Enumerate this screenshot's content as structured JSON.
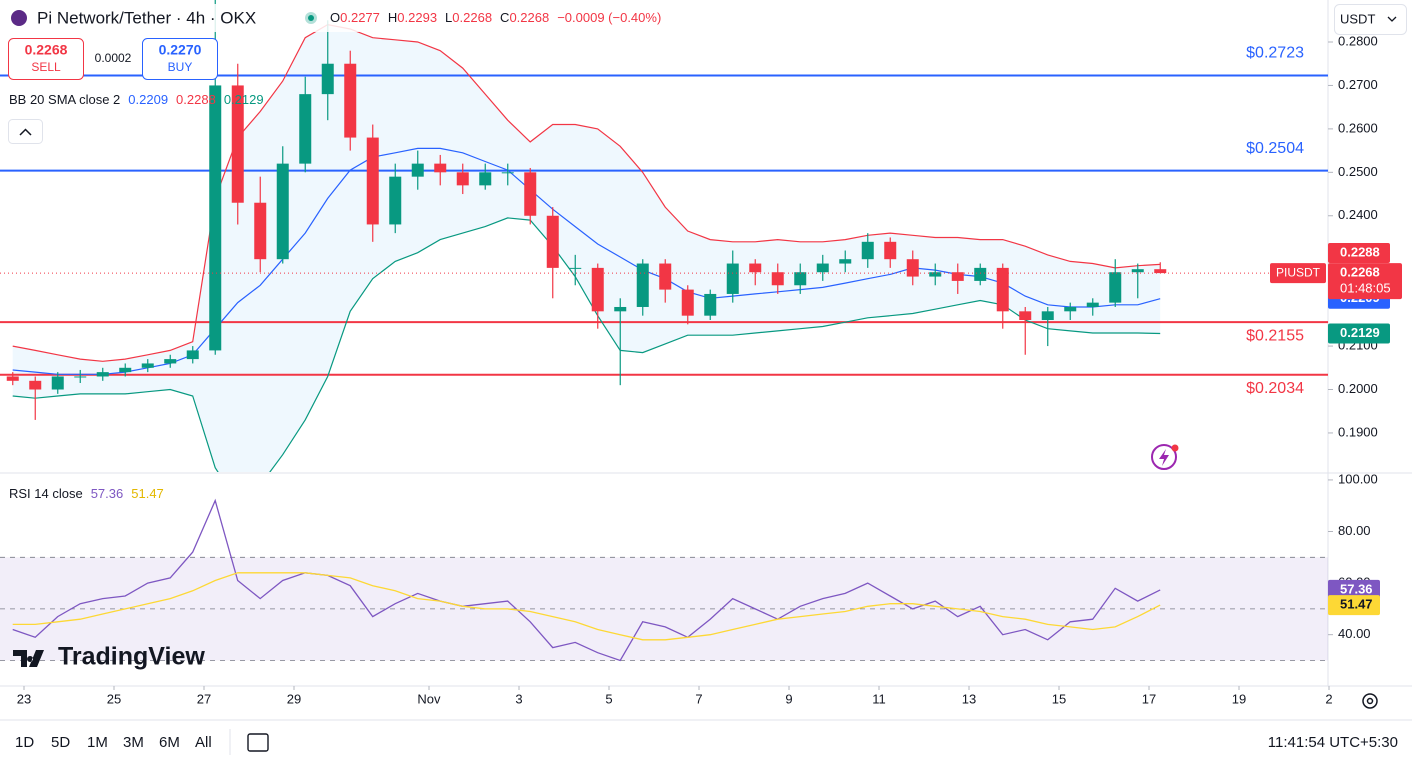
{
  "header": {
    "symbol": "Pi Network/Tether · 4h · OKX",
    "ohlc": [
      [
        "O",
        "0.2277"
      ],
      [
        "H",
        "0.2293"
      ],
      [
        "L",
        "0.2268"
      ],
      [
        "C",
        "0.2268"
      ]
    ],
    "change": "−0.0009 (−0.40%)"
  },
  "trade": {
    "sell_price": "0.2268",
    "sell": "SELL",
    "spread": "0.0002",
    "buy_price": "0.2270",
    "buy": "BUY"
  },
  "currency": "USDT",
  "watermark": "TradingView",
  "toolbar": {
    "ranges": [
      "1D",
      "5D",
      "1M",
      "3M",
      "6M",
      "All"
    ],
    "clock": "11:41:54 UTC+5:30"
  },
  "chart_data": [
    {
      "type": "candlestick",
      "up_color": "#089981",
      "down_color": "#f23645",
      "xlim": [
        -0.5333,
        28.9778
      ],
      "ylim": [
        0.18101,
        0.28967
      ],
      "yticks": [
        {
          "value": 0.28,
          "label": "0.2800"
        },
        {
          "value": 0.27,
          "label": "0.2700"
        },
        {
          "value": 0.26,
          "label": "0.2600"
        },
        {
          "value": 0.25,
          "label": "0.2500"
        },
        {
          "value": 0.24,
          "label": "0.2400"
        },
        {
          "value": 0.23,
          "label": "0.2300"
        },
        {
          "value": 0.22,
          "label": "0.2200"
        },
        {
          "value": 0.21,
          "label": "0.2100"
        },
        {
          "value": 0.2,
          "label": "0.2000"
        },
        {
          "value": 0.19,
          "label": "0.1900"
        }
      ],
      "grid": false,
      "x": [
        -0.25,
        0.25,
        0.75,
        1.25,
        1.75,
        2.25,
        2.75,
        3.25,
        3.75,
        4.25,
        4.75,
        5.25,
        5.75,
        6.25,
        6.75,
        7.25,
        7.75,
        8.25,
        8.75,
        9.25,
        9.75,
        10.25,
        10.75,
        11.25,
        11.75,
        12.25,
        12.75,
        13.25,
        13.75,
        14.25,
        14.75,
        15.25,
        15.75,
        16.25,
        16.75,
        17.25,
        17.75,
        18.25,
        18.75,
        19.25,
        19.75,
        20.25,
        20.75,
        21.25,
        21.75,
        22.25,
        22.75,
        23.25,
        23.75,
        24.25,
        24.75,
        25.25
      ],
      "open": [
        0.203,
        0.202,
        0.2,
        0.203,
        0.203,
        0.204,
        0.205,
        0.206,
        0.207,
        0.209,
        0.27,
        0.243,
        0.23,
        0.252,
        0.268,
        0.275,
        0.258,
        0.238,
        0.249,
        0.252,
        0.25,
        0.247,
        0.25,
        0.25,
        0.24,
        0.228,
        0.228,
        0.218,
        0.219,
        0.229,
        0.223,
        0.217,
        0.222,
        0.229,
        0.227,
        0.224,
        0.227,
        0.229,
        0.23,
        0.234,
        0.23,
        0.226,
        0.227,
        0.225,
        0.228,
        0.218,
        0.216,
        0.218,
        0.219,
        0.22,
        0.227,
        0.2277
      ],
      "high": [
        0.204,
        0.203,
        0.204,
        0.2045,
        0.205,
        0.206,
        0.207,
        0.208,
        0.21,
        0.2897,
        0.275,
        0.249,
        0.256,
        0.272,
        0.285,
        0.278,
        0.261,
        0.252,
        0.255,
        0.254,
        0.252,
        0.252,
        0.252,
        0.251,
        0.242,
        0.231,
        0.229,
        0.221,
        0.23,
        0.23,
        0.224,
        0.223,
        0.232,
        0.23,
        0.229,
        0.229,
        0.231,
        0.232,
        0.236,
        0.235,
        0.232,
        0.229,
        0.229,
        0.229,
        0.229,
        0.219,
        0.219,
        0.22,
        0.221,
        0.23,
        0.229,
        0.2293
      ],
      "low": [
        0.201,
        0.193,
        0.199,
        0.2015,
        0.202,
        0.203,
        0.204,
        0.205,
        0.206,
        0.208,
        0.238,
        0.227,
        0.229,
        0.25,
        0.262,
        0.255,
        0.234,
        0.236,
        0.246,
        0.247,
        0.245,
        0.246,
        0.247,
        0.238,
        0.221,
        0.224,
        0.214,
        0.201,
        0.217,
        0.22,
        0.215,
        0.216,
        0.22,
        0.224,
        0.222,
        0.222,
        0.225,
        0.227,
        0.228,
        0.228,
        0.224,
        0.224,
        0.222,
        0.224,
        0.214,
        0.208,
        0.21,
        0.216,
        0.217,
        0.219,
        0.221,
        0.2268
      ],
      "close": [
        0.202,
        0.2,
        0.203,
        0.203,
        0.204,
        0.205,
        0.206,
        0.207,
        0.209,
        0.27,
        0.243,
        0.23,
        0.252,
        0.268,
        0.275,
        0.258,
        0.238,
        0.249,
        0.252,
        0.25,
        0.247,
        0.25,
        0.25,
        0.24,
        0.228,
        0.228,
        0.218,
        0.219,
        0.229,
        0.223,
        0.217,
        0.222,
        0.229,
        0.227,
        0.224,
        0.227,
        0.229,
        0.23,
        0.234,
        0.23,
        0.226,
        0.227,
        0.225,
        0.228,
        0.218,
        0.216,
        0.218,
        0.219,
        0.22,
        0.227,
        0.2277,
        0.2268
      ],
      "overlay": {
        "title": "BB 20 SMA close 2",
        "fill": "rgba(33,150,243,0.07)",
        "lines": [
          {
            "color": "#2962ff",
            "last_label": "0.2209",
            "values": [
              0.2045,
              0.204,
              0.2035,
              0.2035,
              0.2035,
              0.204,
              0.205,
              0.206,
              0.208,
              0.214,
              0.22,
              0.224,
              0.23,
              0.236,
              0.244,
              0.2505,
              0.2535,
              0.2545,
              0.2555,
              0.2555,
              0.2545,
              0.2525,
              0.2505,
              0.246,
              0.2415,
              0.2375,
              0.2335,
              0.2305,
              0.2275,
              0.2255,
              0.2225,
              0.221,
              0.2215,
              0.222,
              0.2225,
              0.223,
              0.2235,
              0.2245,
              0.2255,
              0.2265,
              0.228,
              0.2275,
              0.2265,
              0.226,
              0.2245,
              0.2215,
              0.2195,
              0.219,
              0.219,
              0.2195,
              0.2195,
              0.2209
            ]
          },
          {
            "color": "#f23645",
            "last_label": "0.2288",
            "values": [
              0.21,
              0.209,
              0.208,
              0.207,
              0.2065,
              0.207,
              0.208,
              0.209,
              0.211,
              0.244,
              0.258,
              0.264,
              0.271,
              0.281,
              0.284,
              0.283,
              0.281,
              0.2805,
              0.28,
              0.278,
              0.274,
              0.268,
              0.262,
              0.257,
              0.261,
              0.261,
              0.26,
              0.256,
              0.25,
              0.242,
              0.2365,
              0.2345,
              0.234,
              0.234,
              0.2345,
              0.234,
              0.234,
              0.2345,
              0.2355,
              0.236,
              0.2355,
              0.235,
              0.235,
              0.2345,
              0.2345,
              0.233,
              0.231,
              0.2295,
              0.229,
              0.228,
              0.2285,
              0.2288
            ]
          },
          {
            "color": "#089981",
            "last_label": "0.2129",
            "values": [
              0.1985,
              0.198,
              0.1985,
              0.199,
              0.199,
              0.199,
              0.1995,
              0.2,
              0.1985,
              0.182,
              0.174,
              0.178,
              0.185,
              0.193,
              0.203,
              0.218,
              0.2255,
              0.2295,
              0.2315,
              0.2345,
              0.236,
              0.2375,
              0.2395,
              0.239,
              0.233,
              0.226,
              0.217,
              0.209,
              0.2085,
              0.2105,
              0.2125,
              0.2125,
              0.2125,
              0.213,
              0.2135,
              0.214,
              0.2145,
              0.2155,
              0.2165,
              0.217,
              0.2175,
              0.2185,
              0.2195,
              0.2205,
              0.2195,
              0.216,
              0.214,
              0.2135,
              0.213,
              0.213,
              0.213,
              0.2129
            ]
          }
        ]
      },
      "levels": [
        {
          "value": 0.2723,
          "label": "$0.2723",
          "color": "#2962ff"
        },
        {
          "value": 0.2504,
          "label": "$0.2504",
          "color": "#2962ff"
        },
        {
          "value": 0.2155,
          "label": "$0.2155",
          "color": "#f23645"
        },
        {
          "value": 0.2034,
          "label": "$0.2034",
          "color": "#f23645"
        }
      ],
      "price_line": {
        "value": 0.2268,
        "label": "0.2268",
        "symbol": "PIUSDT",
        "countdown": "01:48:05",
        "color": "#f23645"
      }
    },
    {
      "type": "line",
      "title": "RSI 14 close",
      "xlim": [
        -0.5333,
        28.9778
      ],
      "ylim": [
        20.1,
        102.3
      ],
      "yticks": [
        {
          "value": 100,
          "label": "100.00"
        },
        {
          "value": 80,
          "label": "80.00"
        },
        {
          "value": 60,
          "label": "60.00"
        },
        {
          "value": 40,
          "label": "40.00"
        }
      ],
      "xticks": [
        {
          "value": 0,
          "label": "23"
        },
        {
          "value": 2,
          "label": "25"
        },
        {
          "value": 4,
          "label": "27"
        },
        {
          "value": 6,
          "label": "29"
        },
        {
          "value": 9,
          "label": "Nov"
        },
        {
          "value": 11,
          "label": "3"
        },
        {
          "value": 13,
          "label": "5"
        },
        {
          "value": 15,
          "label": "7"
        },
        {
          "value": 17,
          "label": "9"
        },
        {
          "value": 19,
          "label": "11"
        },
        {
          "value": 21,
          "label": "13"
        },
        {
          "value": 23,
          "label": "15"
        },
        {
          "value": 25,
          "label": "17"
        },
        {
          "value": 27,
          "label": "19"
        },
        {
          "value": 29,
          "label": "2"
        }
      ],
      "band": [
        30,
        70
      ],
      "midline": 50,
      "band_color": "rgba(126,87,194,0.1)",
      "x": [
        -0.25,
        0.25,
        0.75,
        1.25,
        1.75,
        2.25,
        2.75,
        3.25,
        3.75,
        4.25,
        4.75,
        5.25,
        5.75,
        6.25,
        6.75,
        7.25,
        7.75,
        8.25,
        8.75,
        9.25,
        9.75,
        10.25,
        10.75,
        11.25,
        11.75,
        12.25,
        12.75,
        13.25,
        13.75,
        14.25,
        14.75,
        15.25,
        15.75,
        16.25,
        16.75,
        17.25,
        17.75,
        18.25,
        18.75,
        19.25,
        19.75,
        20.25,
        20.75,
        21.25,
        21.75,
        22.25,
        22.75,
        23.25,
        23.75,
        24.25,
        24.75,
        25.25
      ],
      "series": [
        {
          "color": "#7e57c2",
          "last_label": "57.36",
          "values": [
            42,
            39,
            47,
            52,
            54,
            55,
            60,
            62,
            72,
            92,
            61,
            54,
            61,
            64,
            63,
            59,
            47,
            52,
            56,
            53,
            51,
            52,
            53,
            45,
            35,
            37,
            33,
            30,
            45,
            43,
            39,
            46,
            54,
            50,
            46,
            51,
            54,
            56,
            60,
            55,
            50,
            53,
            47,
            51,
            40,
            42,
            38,
            45,
            46,
            58,
            53,
            57.36
          ]
        },
        {
          "color": "#fdd835",
          "last_label": "51.47",
          "values": [
            44,
            44,
            45,
            46,
            48,
            50,
            52,
            54,
            57,
            61,
            64,
            64,
            64,
            64,
            63,
            62,
            59,
            57,
            54,
            53,
            51,
            50,
            50,
            49,
            47,
            45,
            42,
            40,
            38,
            38,
            39,
            40,
            42,
            44,
            46,
            47,
            48,
            49,
            51,
            52,
            52,
            51,
            50,
            49,
            47,
            46,
            44,
            43,
            42,
            43,
            47,
            51.47
          ]
        }
      ]
    }
  ]
}
